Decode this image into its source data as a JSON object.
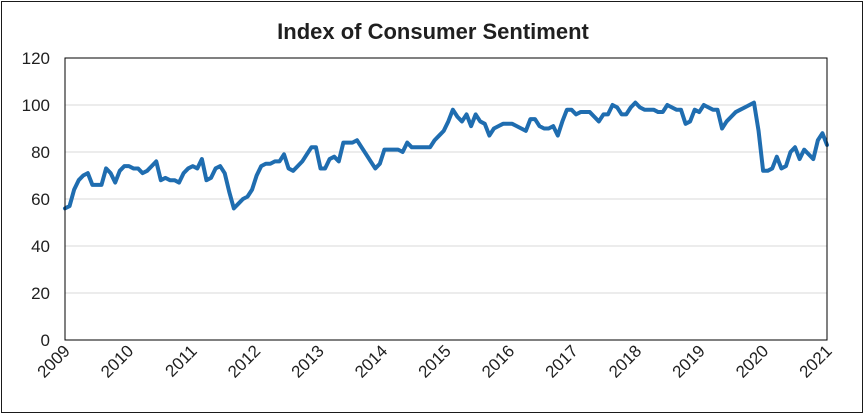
{
  "chart_data": {
    "type": "line",
    "title": "Index of Consumer Sentiment",
    "xlabel": "",
    "ylabel": "",
    "ylim": [
      0,
      120
    ],
    "yticks": [
      0,
      20,
      40,
      60,
      80,
      100,
      120
    ],
    "xlim": [
      2009,
      2021.0
    ],
    "xticks": [
      "2009",
      "2010",
      "2011",
      "2012",
      "2013",
      "2014",
      "2015",
      "2016",
      "2017",
      "2018",
      "2019",
      "2020",
      "2021"
    ],
    "grid": true,
    "legend": "none",
    "series_color": "#1f6db0",
    "series": [
      {
        "name": "Index of Consumer Sentiment",
        "values": [
          56,
          57,
          64,
          68,
          70,
          71,
          66,
          66,
          66,
          73,
          71,
          67,
          72,
          74,
          74,
          73,
          73,
          71,
          72,
          74,
          76,
          68,
          69,
          68,
          68,
          67,
          71,
          73,
          74,
          73,
          77,
          68,
          69,
          73,
          74,
          71,
          63,
          56,
          58,
          60,
          61,
          64,
          70,
          74,
          75,
          75,
          76,
          76,
          79,
          73,
          72,
          74,
          76,
          79,
          82,
          82,
          73,
          73,
          77,
          78,
          76,
          84,
          84,
          84,
          85,
          82,
          79,
          76,
          73,
          75,
          81,
          81,
          81,
          81,
          80,
          84,
          82,
          82,
          82,
          82,
          82,
          85,
          87,
          89,
          93,
          98,
          95,
          93,
          96,
          91,
          96,
          93,
          92,
          87,
          90,
          91,
          92,
          92,
          92,
          91,
          90,
          89,
          94,
          94,
          91,
          90,
          90,
          91,
          87,
          93,
          98,
          98,
          96,
          97,
          97,
          97,
          95,
          93,
          96,
          96,
          100,
          99,
          96,
          96,
          99,
          101,
          99,
          98,
          98,
          98,
          97,
          97,
          100,
          99,
          98,
          98,
          92,
          93,
          98,
          97,
          100,
          99,
          98,
          98,
          90,
          93,
          95,
          97,
          98,
          99,
          100,
          101,
          89,
          72,
          72,
          73,
          78,
          73,
          74,
          80,
          82,
          77,
          81,
          79,
          77,
          85,
          88,
          83
        ]
      }
    ]
  }
}
